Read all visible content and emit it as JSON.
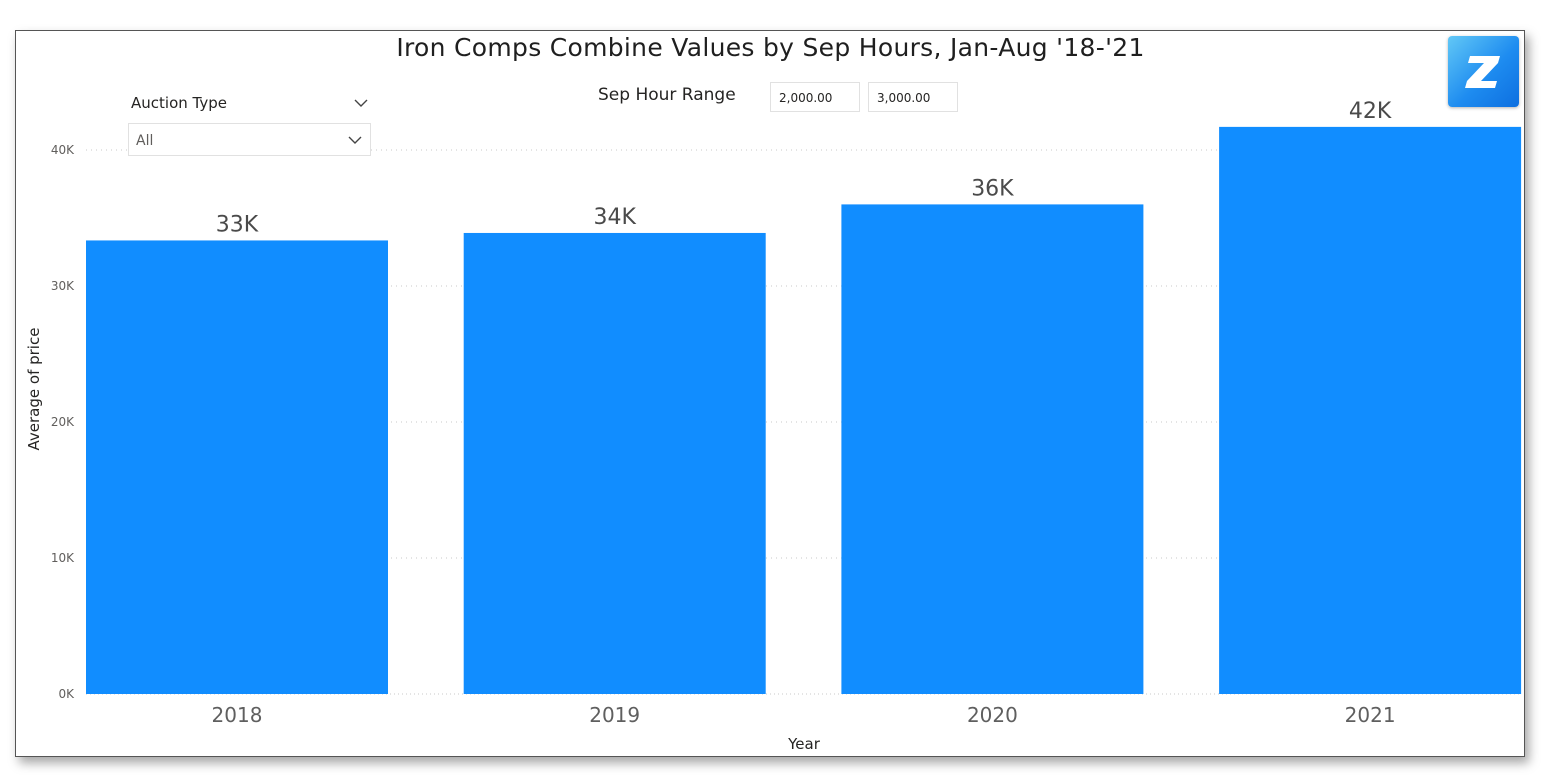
{
  "title": "Iron Comps Combine Values by Sep Hours, Jan-Aug '18-'21",
  "slicer": {
    "label": "Auction Type",
    "selected": "All"
  },
  "range_filter": {
    "label": "Sep Hour Range",
    "min": "2,000.00",
    "max": "3,000.00"
  },
  "logo_icon": "z-logo-icon",
  "colors": {
    "bar": "#118dff",
    "gridline": "#c8c8c8"
  },
  "chart_data": {
    "type": "bar",
    "categories": [
      "2018",
      "2019",
      "2020",
      "2021"
    ],
    "values": [
      33350,
      33900,
      36000,
      41700
    ],
    "data_labels": [
      "33K",
      "34K",
      "36K",
      "42K"
    ],
    "title": "Iron Comps Combine Values by Sep Hours, Jan-Aug '18-'21",
    "xlabel": "Year",
    "ylabel": "Average of price",
    "ylim": [
      0,
      42000
    ],
    "yticks": [
      0,
      10000,
      20000,
      30000,
      40000
    ],
    "ytick_labels": [
      "0K",
      "10K",
      "20K",
      "30K",
      "40K"
    ],
    "grid": true
  }
}
